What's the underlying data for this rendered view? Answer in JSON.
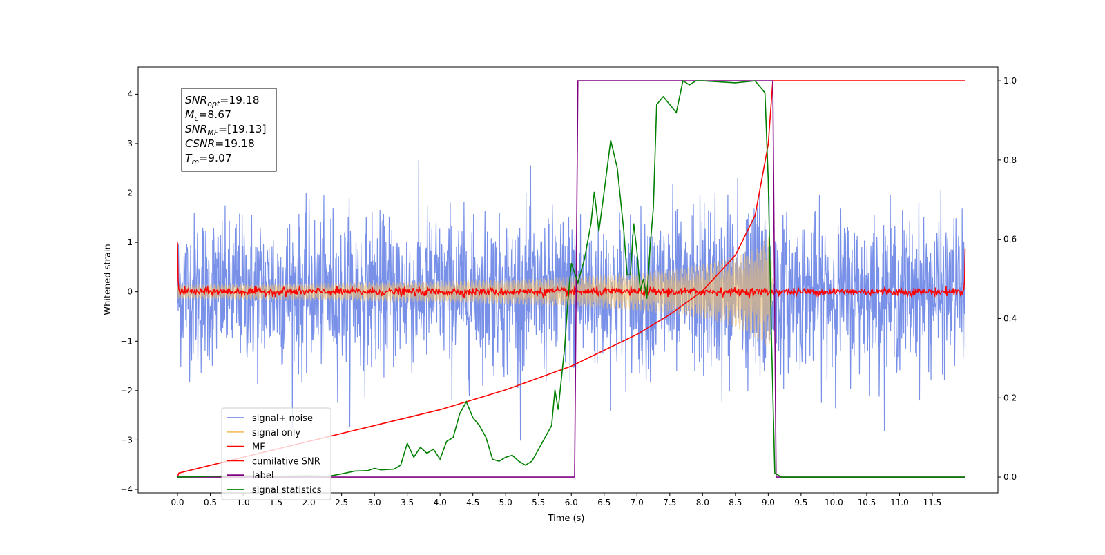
{
  "chart_data": {
    "type": "line",
    "xlabel": "Time (s)",
    "ylabel": "Whitened strain",
    "xlim": [
      -0.6,
      12.5
    ],
    "ylim": [
      -4.07,
      4.55
    ],
    "y2lim": [
      -0.04,
      1.035
    ],
    "x_ticks": [
      "0.0",
      "0.5",
      "1.0",
      "1.5",
      "2.0",
      "2.5",
      "3.0",
      "3.5",
      "4.0",
      "4.5",
      "5.0",
      "5.5",
      "6.0",
      "6.5",
      "7.0",
      "7.5",
      "8.0",
      "8.5",
      "9.0",
      "9.5",
      "10.0",
      "10.5",
      "11.0",
      "11.5"
    ],
    "y_ticks": [
      "4",
      "3",
      "2",
      "1",
      "0",
      "−1",
      "−2",
      "−3",
      "−4"
    ],
    "y2_ticks": [
      "1.0",
      "0.8",
      "0.6",
      "0.4",
      "0.2",
      "0.0"
    ],
    "grid": false,
    "legend_placement": "lower-left",
    "annotation": {
      "lines": [
        {
          "var": "SNR",
          "sub": "opt",
          "value": "=19.18"
        },
        {
          "var": "M",
          "sub": "c",
          "value": "=8.67"
        },
        {
          "var": "SNR",
          "sub": "MF",
          "value": "=[19.13]"
        },
        {
          "var": "CSNR",
          "sub": "",
          "value": "=19.18"
        },
        {
          "var": "T",
          "sub": "m",
          "value": "=9.07"
        }
      ]
    },
    "params": {
      "snr_opt": 19.18,
      "chirp_mass": 8.67,
      "snr_mf": 19.13,
      "csnr": 19.18,
      "merger_time": 9.07,
      "duration": 12.0
    },
    "series": [
      {
        "name": "signal+ noise",
        "color": "#7890e8",
        "axis": "left",
        "noise_std": 0.75
      },
      {
        "name": "signal only",
        "color": "#f5c26b",
        "axis": "left",
        "amplitude_at_merger": 1.25
      },
      {
        "name": "MF",
        "color": "#ff0000",
        "axis": "left",
        "noise_std": 0.04
      },
      {
        "name": "cumilative SNR",
        "color": "#ff0000",
        "axis": "right",
        "points": [
          [
            0.0,
            0.0
          ],
          [
            0.02,
            0.01
          ],
          [
            1.0,
            0.05
          ],
          [
            2.0,
            0.09
          ],
          [
            3.0,
            0.13
          ],
          [
            4.0,
            0.17
          ],
          [
            5.0,
            0.22
          ],
          [
            5.5,
            0.25
          ],
          [
            6.0,
            0.28
          ],
          [
            6.5,
            0.32
          ],
          [
            7.0,
            0.36
          ],
          [
            7.5,
            0.41
          ],
          [
            8.0,
            0.47
          ],
          [
            8.5,
            0.56
          ],
          [
            8.8,
            0.66
          ],
          [
            9.0,
            0.84
          ],
          [
            9.07,
            1.0
          ],
          [
            12.0,
            1.0
          ]
        ]
      },
      {
        "name": "label",
        "color": "#800080",
        "axis": "right",
        "points": [
          [
            0.0,
            0.0
          ],
          [
            6.05,
            0.0
          ],
          [
            6.1,
            1.0
          ],
          [
            9.07,
            1.0
          ],
          [
            9.12,
            0.0
          ],
          [
            12.0,
            0.0
          ]
        ]
      },
      {
        "name": "signal statistics",
        "color": "#008000",
        "axis": "right",
        "points": [
          [
            0.0,
            0.0
          ],
          [
            0.5,
            0.002
          ],
          [
            1.0,
            0.003
          ],
          [
            1.5,
            0.002
          ],
          [
            2.0,
            0.003
          ],
          [
            2.3,
            0.002
          ],
          [
            2.5,
            0.008
          ],
          [
            2.7,
            0.015
          ],
          [
            2.9,
            0.016
          ],
          [
            3.0,
            0.022
          ],
          [
            3.1,
            0.018
          ],
          [
            3.3,
            0.02
          ],
          [
            3.4,
            0.03
          ],
          [
            3.5,
            0.085
          ],
          [
            3.6,
            0.05
          ],
          [
            3.7,
            0.075
          ],
          [
            3.8,
            0.06
          ],
          [
            3.9,
            0.07
          ],
          [
            4.0,
            0.045
          ],
          [
            4.1,
            0.09
          ],
          [
            4.2,
            0.1
          ],
          [
            4.3,
            0.16
          ],
          [
            4.4,
            0.19
          ],
          [
            4.5,
            0.15
          ],
          [
            4.6,
            0.13
          ],
          [
            4.7,
            0.1
          ],
          [
            4.8,
            0.045
          ],
          [
            4.9,
            0.04
          ],
          [
            5.0,
            0.05
          ],
          [
            5.1,
            0.055
          ],
          [
            5.2,
            0.04
          ],
          [
            5.3,
            0.03
          ],
          [
            5.4,
            0.04
          ],
          [
            5.5,
            0.07
          ],
          [
            5.6,
            0.1
          ],
          [
            5.7,
            0.13
          ],
          [
            5.75,
            0.22
          ],
          [
            5.8,
            0.17
          ],
          [
            5.85,
            0.25
          ],
          [
            5.9,
            0.33
          ],
          [
            5.95,
            0.45
          ],
          [
            6.0,
            0.54
          ],
          [
            6.1,
            0.49
          ],
          [
            6.2,
            0.55
          ],
          [
            6.3,
            0.64
          ],
          [
            6.35,
            0.72
          ],
          [
            6.42,
            0.62
          ],
          [
            6.5,
            0.72
          ],
          [
            6.6,
            0.85
          ],
          [
            6.7,
            0.78
          ],
          [
            6.8,
            0.62
          ],
          [
            6.85,
            0.51
          ],
          [
            6.9,
            0.51
          ],
          [
            6.95,
            0.64
          ],
          [
            7.0,
            0.57
          ],
          [
            7.05,
            0.47
          ],
          [
            7.1,
            0.5
          ],
          [
            7.15,
            0.45
          ],
          [
            7.2,
            0.58
          ],
          [
            7.25,
            0.68
          ],
          [
            7.3,
            0.94
          ],
          [
            7.4,
            0.96
          ],
          [
            7.5,
            0.94
          ],
          [
            7.6,
            0.92
          ],
          [
            7.7,
            1.0
          ],
          [
            7.8,
            0.99
          ],
          [
            7.9,
            1.0
          ],
          [
            8.0,
            1.0
          ],
          [
            8.5,
            0.995
          ],
          [
            8.8,
            1.0
          ],
          [
            8.95,
            0.97
          ],
          [
            9.0,
            0.75
          ],
          [
            9.05,
            0.35
          ],
          [
            9.1,
            0.01
          ],
          [
            9.2,
            0.0
          ],
          [
            12.0,
            0.0
          ]
        ]
      }
    ]
  }
}
